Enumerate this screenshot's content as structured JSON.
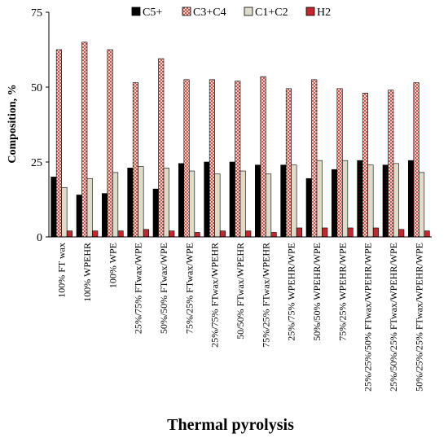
{
  "chart_data": {
    "type": "bar",
    "title": "",
    "xlabel": "Thermal pyrolysis",
    "ylabel": "Composition, %",
    "ylim": [
      0,
      75
    ],
    "yticks": [
      0,
      25,
      50,
      75
    ],
    "grid": false,
    "legend_position": "top",
    "categories": [
      "100% FT wax",
      "100% WPEHR",
      "100% WPE",
      "25%/75% FTwax/WPE",
      "50%/50% FTwax/WPE",
      "75%/25% FTwax/WPE",
      "25%/75% FTwax/WPEHR",
      "50/50% FTwax/WPEHR",
      "75%/25% FTwax/WPEHR",
      "25%/75% WPEHR/WPE",
      "50%/50% WPEHR/WPE",
      "75%/25% WPEHR/WPE",
      "25%/25%/50% FTwax/WPEHR/WPE",
      "25%/50%/25% FTwax/WPEHR/WPE",
      "50%/25%/25% FTwax/WPEHR/WPE"
    ],
    "series": [
      {
        "name": "C5+",
        "color": "#000000",
        "pattern": "solid",
        "values": [
          20,
          14,
          14.5,
          23,
          16,
          24.5,
          25,
          25,
          24,
          24,
          19.5,
          22.5,
          25.5,
          24,
          25.5
        ]
      },
      {
        "name": "C3+C4",
        "color": "#ffffff",
        "pattern": "crosshatch-red",
        "values": [
          62.5,
          65,
          62.5,
          51.5,
          59.5,
          52.5,
          52.5,
          52,
          53.5,
          49.5,
          52.5,
          49.5,
          48,
          49,
          51.5
        ]
      },
      {
        "name": "C1+C2",
        "color": "#dedbc9",
        "pattern": "solid",
        "values": [
          16.5,
          19.5,
          21.5,
          23.5,
          23,
          22,
          21,
          22,
          21,
          24,
          25.5,
          25.5,
          24,
          24.5,
          21.5
        ]
      },
      {
        "name": "H2",
        "color": "#c1272d",
        "pattern": "solid",
        "values": [
          2,
          2,
          2,
          2.5,
          2,
          1.5,
          2,
          2,
          1.5,
          3,
          3,
          3,
          3,
          2.5,
          2
        ]
      }
    ]
  }
}
